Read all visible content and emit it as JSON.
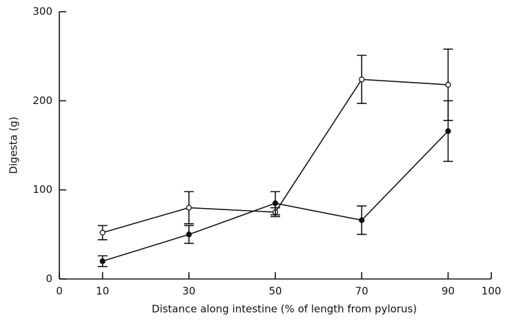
{
  "chart_data": {
    "type": "line",
    "x_label": "Distance along intestine (% of length from pylorus)",
    "y_label": "Digesta (g)",
    "x": [
      10,
      30,
      50,
      70,
      90
    ],
    "series": [
      {
        "color": "#111111",
        "marker": "open",
        "values": [
          52,
          80,
          75,
          224,
          218
        ],
        "errors": [
          8,
          18,
          5,
          27,
          40
        ]
      },
      {
        "color": "#111111",
        "marker": "filled",
        "values": [
          20,
          50,
          85,
          66,
          166
        ],
        "errors": [
          6,
          10,
          13,
          16,
          34
        ]
      }
    ],
    "xlim": [
      0,
      100
    ],
    "xticks": [
      0,
      10,
      30,
      50,
      70,
      90,
      100
    ],
    "ylim": [
      0,
      300
    ],
    "yticks": [
      0,
      100,
      200,
      300
    ]
  }
}
